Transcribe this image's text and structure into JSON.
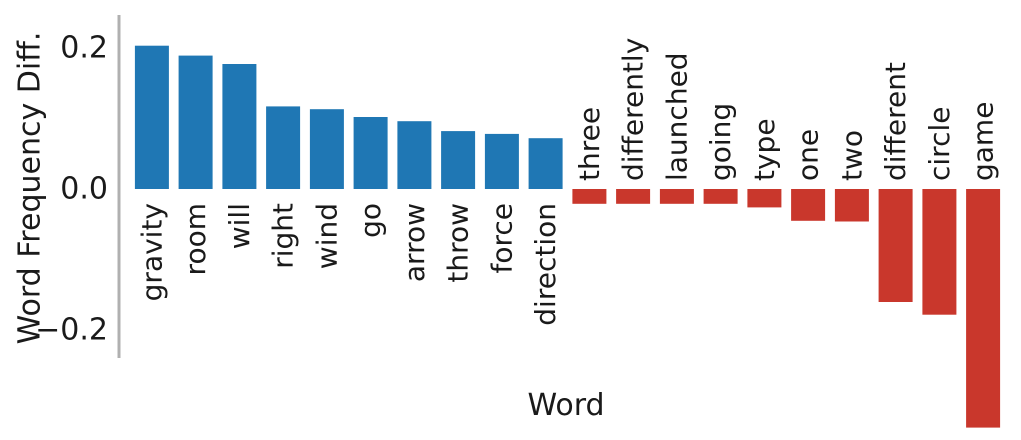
{
  "chart_data": {
    "type": "bar",
    "title": "",
    "xlabel": "Word",
    "ylabel": "Word Frequency Diff.",
    "ylim": [
      -0.263,
      0.24
    ],
    "yticks": [
      0.2,
      0.0,
      -0.2
    ],
    "ytick_labels": [
      "0.2",
      "0.0",
      "−0.2"
    ],
    "grid": false,
    "positive_color": "#1f77b4",
    "negative_color": "#c9372c",
    "categories": [
      "gravity",
      "room",
      "will",
      "right",
      "wind",
      "go",
      "arrow",
      "throw",
      "force",
      "direction",
      "three",
      "differently",
      "launched",
      "going",
      "type",
      "one",
      "two",
      "different",
      "circle",
      "game"
    ],
    "values": [
      0.203,
      0.189,
      0.177,
      0.117,
      0.113,
      0.102,
      0.096,
      0.082,
      0.078,
      0.072,
      -0.021,
      -0.021,
      -0.021,
      -0.021,
      -0.026,
      -0.045,
      -0.046,
      -0.16,
      -0.178,
      -0.338
    ]
  }
}
